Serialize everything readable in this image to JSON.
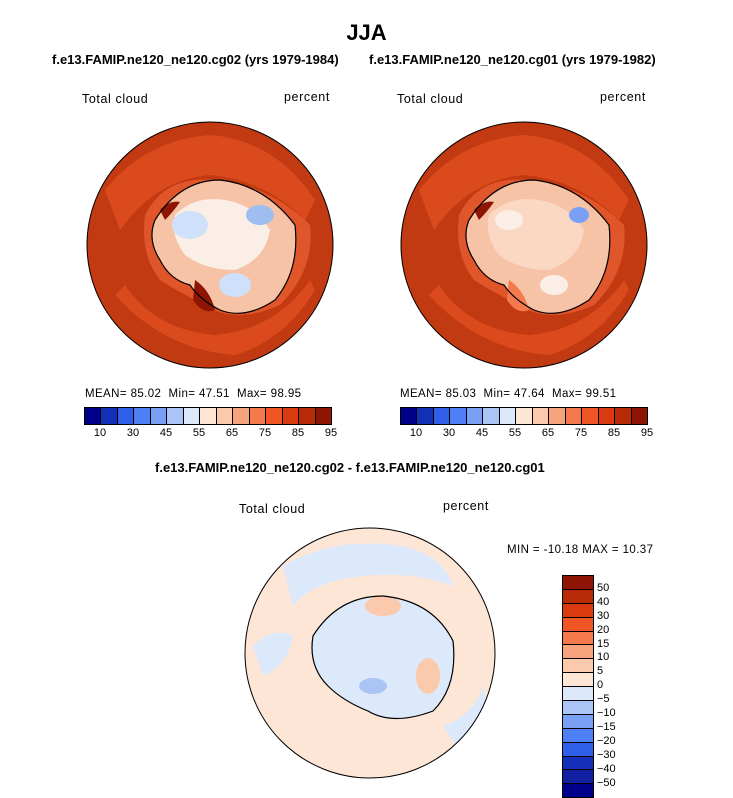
{
  "title": "JJA",
  "panels": [
    {
      "subtitle": "f.e13.FAMIP.ne120_ne120.cg02 (yrs 1979-1984)",
      "variable": "Total cloud",
      "units": "percent",
      "stats": {
        "mean_label": "MEAN=",
        "mean": "85.02",
        "min_label": "Min=",
        "min": "47.51",
        "max_label": "Max=",
        "max": "98.95"
      }
    },
    {
      "subtitle": "f.e13.FAMIP.ne120_ne120.cg01 (yrs 1979-1982)",
      "variable": "Total cloud",
      "units": "percent",
      "stats": {
        "mean_label": "MEAN=",
        "mean": "85.03",
        "min_label": "Min=",
        "min": "47.64",
        "max_label": "Max=",
        "max": "99.51"
      }
    }
  ],
  "abs_colorbar": {
    "colors": [
      "#00008b",
      "#1530b8",
      "#2f5ee8",
      "#4f7ff5",
      "#7aa0f5",
      "#a9c4f5",
      "#dce9fb",
      "#fde6d6",
      "#fbc9ab",
      "#f7a47e",
      "#f47a4e",
      "#ef5525",
      "#db3a10",
      "#b92a08",
      "#8e1503"
    ],
    "tick_labels": [
      "10",
      "30",
      "45",
      "55",
      "65",
      "75",
      "85",
      "95"
    ]
  },
  "diff": {
    "subtitle": "f.e13.FAMIP.ne120_ne120.cg02 - f.e13.FAMIP.ne120_ne120.cg01",
    "variable": "Total cloud",
    "units": "percent",
    "minmax": "MIN = -10.18 MAX =  10.37",
    "colorbar": {
      "colors": [
        "#8e1503",
        "#b92a08",
        "#db3a10",
        "#ef5525",
        "#f47a4e",
        "#f7a47e",
        "#fbc9ab",
        "#fde6d6",
        "#dce9fb",
        "#a9c4f5",
        "#7aa0f5",
        "#4f7ff5",
        "#2f5ee8",
        "#1530b8",
        "#1020a0",
        "#00008b"
      ],
      "tick_labels": [
        "50",
        "40",
        "30",
        "20",
        "15",
        "10",
        "5",
        "0",
        "−5",
        "−10",
        "−15",
        "−20",
        "−30",
        "−40",
        "−50"
      ]
    }
  },
  "map_colors": {
    "ocean_dark": "#c23a12",
    "ocean_mid": "#db4a1c",
    "land_light": "#f7c3a6",
    "land_white": "#fbeee6",
    "blue_light": "#cfe0fa",
    "blue_mid": "#9ebdf0",
    "diff_ocean": "#dce9fb",
    "diff_pos": "#fde6d6"
  }
}
